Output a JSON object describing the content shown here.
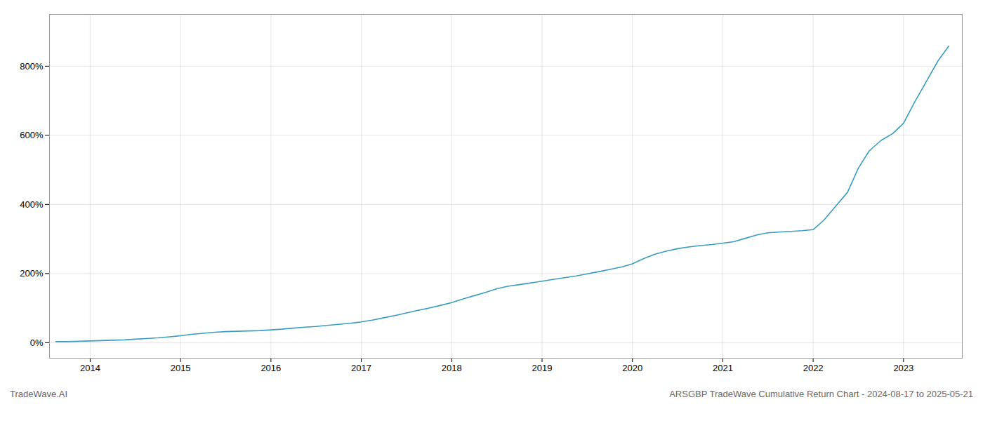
{
  "chart_data": {
    "type": "line",
    "title": "ARSGBP TradeWave Cumulative Return Chart - 2024-08-17 to 2025-05-21",
    "annotations": [
      "TradeWave.AI"
    ],
    "color": "#3a9dbf",
    "grid": true,
    "xlim": [
      2013.55,
      2023.65
    ],
    "ylim": [
      -45,
      950
    ],
    "xticks": [
      2014,
      2015,
      2016,
      2017,
      2018,
      2019,
      2020,
      2021,
      2022,
      2023
    ],
    "yticks": [
      {
        "value": 0,
        "label": "0%"
      },
      {
        "value": 200,
        "label": "200%"
      },
      {
        "value": 400,
        "label": "400%"
      },
      {
        "value": 600,
        "label": "600%"
      },
      {
        "value": 800,
        "label": "800%"
      }
    ],
    "x": [
      2013.62,
      2013.75,
      2013.88,
      2014.0,
      2014.12,
      2014.25,
      2014.38,
      2014.5,
      2014.62,
      2014.75,
      2014.88,
      2015.0,
      2015.12,
      2015.25,
      2015.38,
      2015.5,
      2015.62,
      2015.75,
      2015.88,
      2016.0,
      2016.12,
      2016.25,
      2016.38,
      2016.5,
      2016.62,
      2016.75,
      2016.88,
      2017.0,
      2017.12,
      2017.25,
      2017.38,
      2017.5,
      2017.62,
      2017.75,
      2017.88,
      2018.0,
      2018.12,
      2018.25,
      2018.38,
      2018.5,
      2018.62,
      2018.75,
      2018.88,
      2019.0,
      2019.12,
      2019.25,
      2019.38,
      2019.5,
      2019.62,
      2019.75,
      2019.88,
      2020.0,
      2020.12,
      2020.25,
      2020.38,
      2020.5,
      2020.62,
      2020.75,
      2020.88,
      2021.0,
      2021.12,
      2021.25,
      2021.38,
      2021.5,
      2021.62,
      2021.75,
      2021.88,
      2022.0,
      2022.12,
      2022.25,
      2022.38,
      2022.5,
      2022.62,
      2022.75,
      2022.88,
      2023.0,
      2023.12,
      2023.25,
      2023.38,
      2023.5
    ],
    "values": [
      3,
      3,
      4,
      5,
      6,
      7,
      8,
      10,
      12,
      14,
      17,
      20,
      24,
      27,
      30,
      32,
      33,
      34,
      35,
      37,
      39,
      42,
      45,
      47,
      50,
      53,
      56,
      60,
      65,
      72,
      79,
      86,
      93,
      100,
      108,
      116,
      126,
      136,
      146,
      156,
      163,
      168,
      173,
      178,
      183,
      188,
      193,
      199,
      205,
      212,
      219,
      228,
      243,
      256,
      265,
      272,
      277,
      281,
      284,
      288,
      292,
      302,
      312,
      318,
      320,
      322,
      324,
      327,
      355,
      395,
      435,
      505,
      555,
      585,
      605,
      635,
      695,
      755,
      815,
      858
    ]
  }
}
